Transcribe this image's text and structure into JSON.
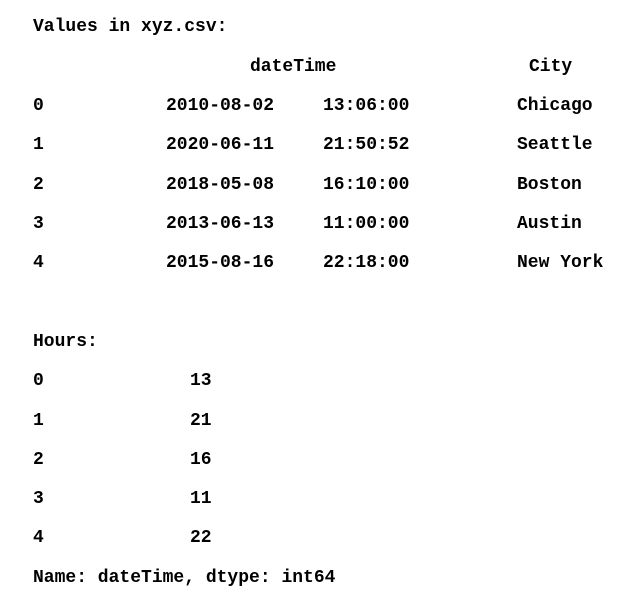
{
  "title": "Values in xyz.csv:",
  "table": {
    "columns": [
      "dateTime",
      "City"
    ],
    "rows": [
      {
        "index": "0",
        "date": "2010-08-02",
        "time": "13:06:00",
        "city": "Chicago"
      },
      {
        "index": "1",
        "date": "2020-06-11",
        "time": "21:50:52",
        "city": "Seattle"
      },
      {
        "index": "2",
        "date": "2018-05-08",
        "time": "16:10:00",
        "city": "Boston"
      },
      {
        "index": "3",
        "date": "2013-06-13",
        "time": "11:00:00",
        "city": "Austin"
      },
      {
        "index": "4",
        "date": "2015-08-16",
        "time": "22:18:00",
        "city": "New York"
      }
    ]
  },
  "hours_label": "Hours:",
  "hours": [
    {
      "index": "0",
      "value": "13"
    },
    {
      "index": "1",
      "value": "21"
    },
    {
      "index": "2",
      "value": "16"
    },
    {
      "index": "3",
      "value": "11"
    },
    {
      "index": "4",
      "value": "22"
    }
  ],
  "footer": "Name: dateTime, dtype: int64"
}
